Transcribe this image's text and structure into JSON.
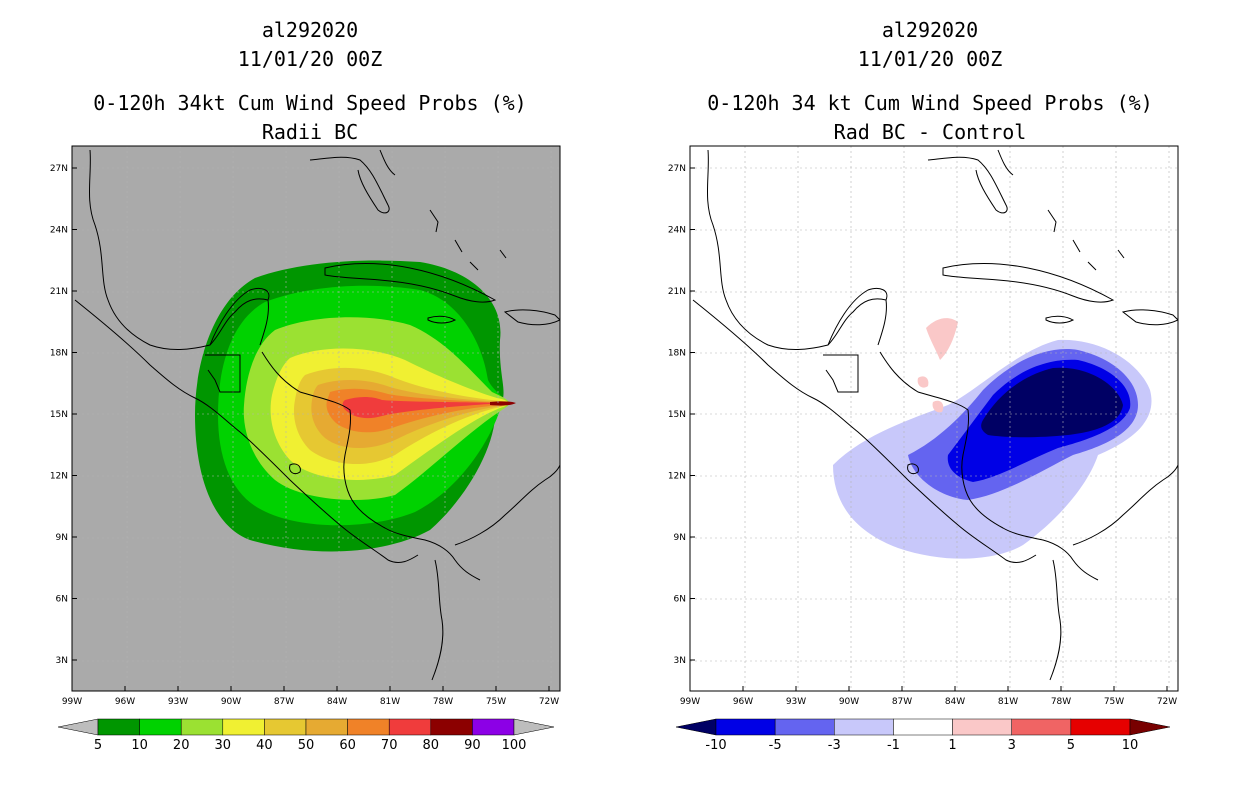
{
  "left": {
    "title": "al292020",
    "date": "11/01/20 00Z",
    "subtitle": "0-120h 34kt Cum Wind Speed Probs (%)",
    "subtitle2": "Radii BC",
    "colorbar": {
      "labels": [
        "5",
        "10",
        "20",
        "30",
        "40",
        "50",
        "60",
        "70",
        "80",
        "90",
        "100"
      ],
      "colors": [
        "#bdbdbd",
        "#009600",
        "#00d200",
        "#9be132",
        "#f0f032",
        "#e6c832",
        "#e6aa32",
        "#f08228",
        "#f03c3c",
        "#8c0000",
        "#8c00e6",
        "#bdbdbd"
      ]
    }
  },
  "right": {
    "title": "al292020",
    "date": "11/01/20 00Z",
    "subtitle": "0-120h 34 kt Cum Wind Speed Probs (%)",
    "subtitle2": "Rad BC - Control",
    "colorbar": {
      "labels": [
        "-10",
        "-5",
        "-3",
        "-1",
        "1",
        "3",
        "5",
        "10"
      ],
      "colors": [
        "#000064",
        "#0000e6",
        "#6464f0",
        "#c8c8fa",
        "#ffffff",
        "#fac8c8",
        "#f06464",
        "#e60000",
        "#780000"
      ]
    }
  },
  "axes": {
    "lat_labels": [
      "27N",
      "24N",
      "21N",
      "18N",
      "15N",
      "12N",
      "9N",
      "6N",
      "3N"
    ],
    "lon_labels": [
      "99W",
      "96W",
      "93W",
      "90W",
      "87W",
      "84W",
      "81W",
      "78W",
      "75W",
      "72W"
    ]
  },
  "colors": {
    "map_bg_left": "#aaaaaa",
    "map_bg_right": "#ffffff",
    "coast": "#000000",
    "grid": "#b4b4b4"
  }
}
